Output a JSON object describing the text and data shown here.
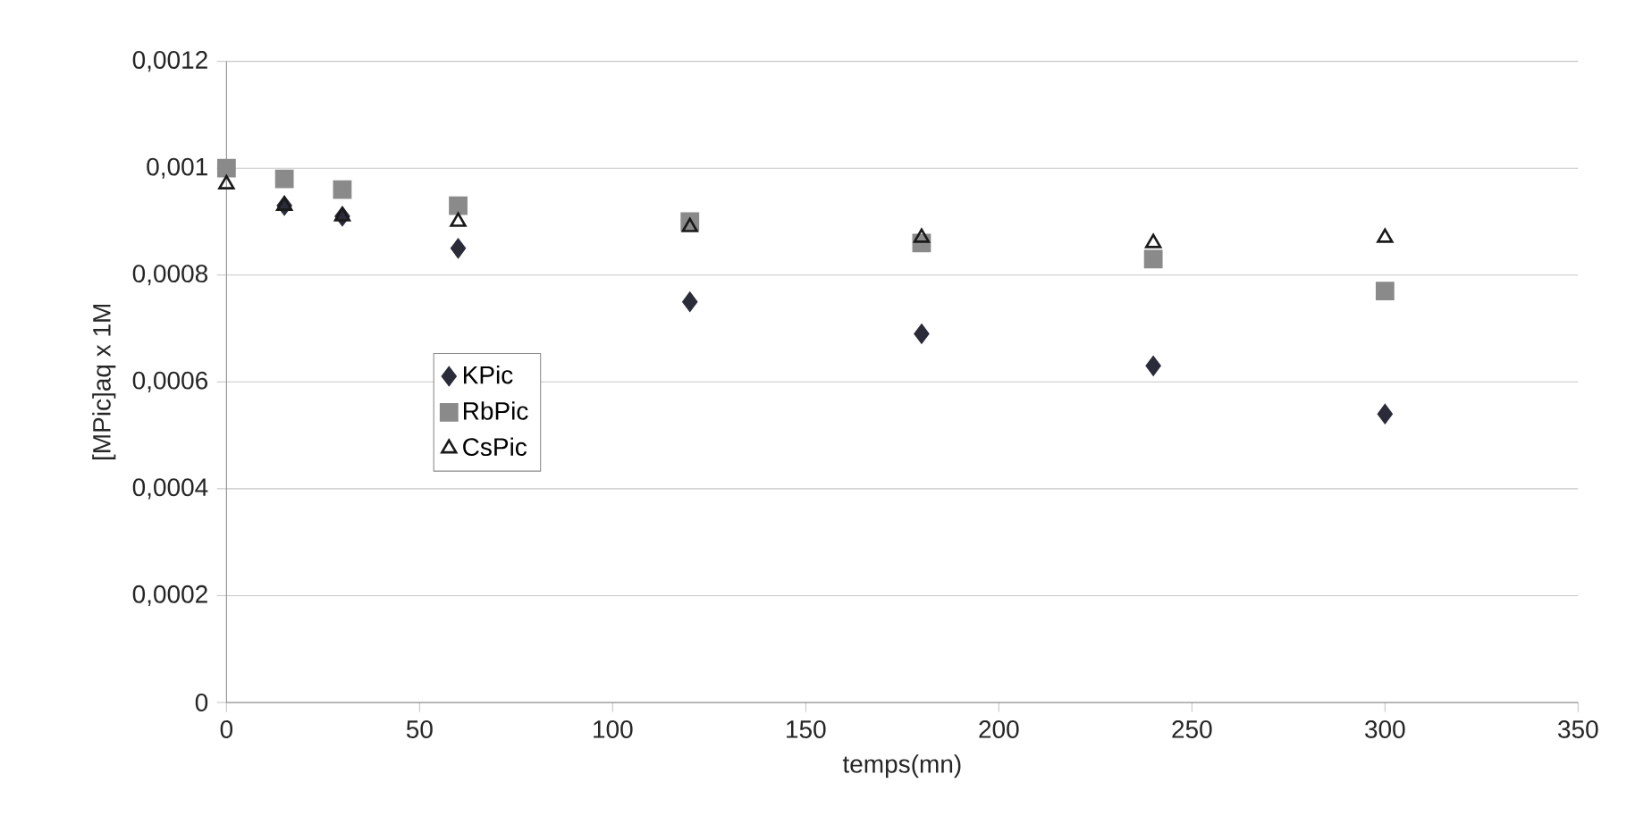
{
  "chart_data": {
    "type": "scatter",
    "xlabel": "temps(mn)",
    "ylabel": "[MPic]aq x 1M",
    "x": [
      0,
      15,
      30,
      60,
      120,
      180,
      240,
      300
    ],
    "series": [
      {
        "name": "KPic",
        "color": "#2b2b3a",
        "marker": "diamond",
        "values": [
          null,
          0.00093,
          0.00091,
          0.00085,
          0.00075,
          0.00069,
          0.00063,
          0.00054
        ]
      },
      {
        "name": "RbPic",
        "color": "#8a8a8a",
        "marker": "square",
        "values": [
          0.001,
          0.00098,
          0.00096,
          0.00093,
          0.0009,
          0.00086,
          0.00083,
          0.00077
        ]
      },
      {
        "name": "CsPic",
        "color": "#1a1a1a",
        "marker": "triangle",
        "values": [
          0.00097,
          0.00093,
          0.00091,
          0.0009,
          0.00089,
          0.00087,
          0.00086,
          0.00087
        ]
      }
    ],
    "xlim": [
      0,
      350
    ],
    "xticks": [
      0,
      50,
      100,
      150,
      200,
      250,
      300,
      350
    ],
    "ylim": [
      0,
      0.0012
    ],
    "yticks": [
      0,
      {
        "value": 0.0002,
        "label": "0,0002"
      },
      {
        "value": 0.0004,
        "label": "0,0004"
      },
      {
        "value": 0.0006,
        "label": "0,0006"
      },
      {
        "value": 0.0008,
        "label": "0,0008"
      },
      {
        "value": 0.001,
        "label": "0,001"
      },
      {
        "value": 0.0012,
        "label": "0,0012"
      }
    ],
    "grid": "y",
    "legend": "left"
  }
}
